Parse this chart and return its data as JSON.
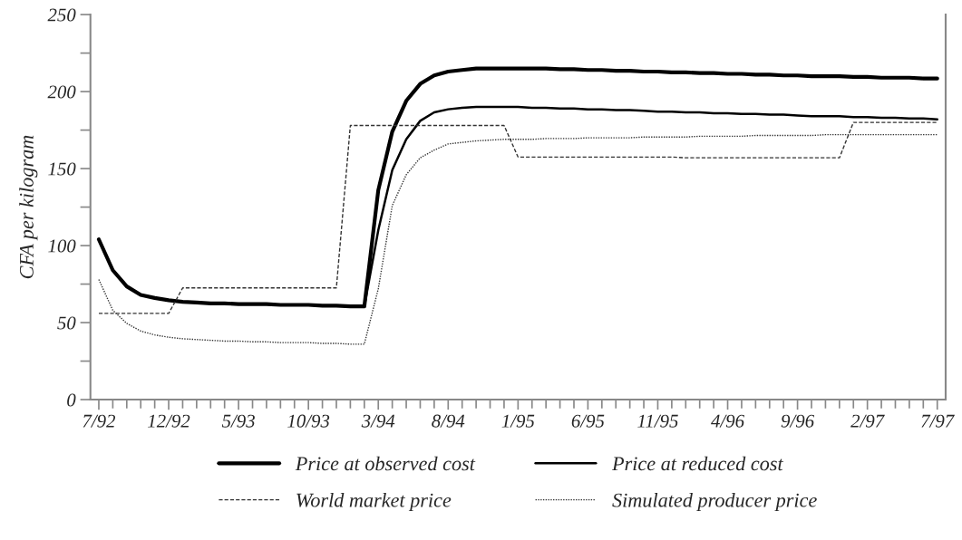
{
  "chart_data": {
    "type": "line",
    "ylabel": "CFA per kilogram",
    "categories": [
      "7/92",
      null,
      null,
      null,
      null,
      "12/92",
      null,
      null,
      null,
      null,
      "5/93",
      null,
      null,
      null,
      null,
      "10/93",
      null,
      null,
      null,
      null,
      "3/94",
      null,
      null,
      null,
      null,
      "8/94",
      null,
      null,
      null,
      null,
      "1/95",
      null,
      null,
      null,
      null,
      "6/95",
      null,
      null,
      null,
      null,
      "11/95",
      null,
      null,
      null,
      null,
      "4/96",
      null,
      null,
      null,
      null,
      "9/96",
      null,
      null,
      null,
      null,
      "2/97",
      null,
      null,
      null,
      null,
      "7/97"
    ],
    "series": [
      {
        "name": "Price at observed cost",
        "color": "#000000",
        "line_style": "solid",
        "values": [
          104,
          84,
          73.5,
          68,
          66,
          64.5,
          63.5,
          63,
          62.5,
          62.5,
          62,
          62,
          62,
          61.5,
          61.5,
          61.5,
          61,
          61,
          60.5,
          60.5,
          136,
          174,
          194,
          205,
          210.5,
          213,
          214,
          215,
          215,
          215,
          215,
          215,
          215,
          214.5,
          214.5,
          214,
          214,
          213.5,
          213.5,
          213,
          213,
          212.5,
          212.5,
          212,
          212,
          211.5,
          211.5,
          211,
          211,
          210.5,
          210.5,
          210,
          210,
          210,
          209.5,
          209.5,
          209,
          209,
          209,
          208.5,
          208.5
        ]
      },
      {
        "name": "Price at reduced cost",
        "color": "#000000",
        "line_style": "solid",
        "values": [
          null,
          null,
          null,
          null,
          null,
          null,
          null,
          null,
          null,
          null,
          null,
          null,
          null,
          null,
          null,
          null,
          null,
          null,
          null,
          60.5,
          110,
          149,
          169,
          181,
          186.5,
          188.5,
          189.5,
          190,
          190,
          190,
          190,
          189.5,
          189.5,
          189,
          189,
          188.5,
          188.5,
          188,
          188,
          187.5,
          187,
          187,
          186.5,
          186.5,
          186,
          186,
          185.5,
          185.5,
          185,
          185,
          184.5,
          184,
          184,
          184,
          183.5,
          183.5,
          183,
          183,
          182.5,
          182.5,
          182
        ]
      },
      {
        "name": "World market price",
        "color": "#333333",
        "line_style": "dashed",
        "values": [
          56,
          56,
          56,
          56,
          56,
          56,
          72.5,
          72.5,
          72.5,
          72.5,
          72.5,
          72.5,
          72.5,
          72.5,
          72.5,
          72.5,
          72.5,
          72.5,
          178,
          178,
          178,
          178,
          178,
          178,
          178,
          178,
          178,
          178,
          178,
          178,
          157.5,
          157.5,
          157.5,
          157.5,
          157.5,
          157.5,
          157.5,
          157.5,
          157.5,
          157.5,
          157.5,
          157.5,
          157,
          157,
          157,
          157,
          157,
          157,
          157,
          157,
          157,
          157,
          157,
          157,
          180,
          180,
          180,
          180,
          180,
          180,
          180
        ]
      },
      {
        "name": "Simulated producer price",
        "color": "#333333",
        "line_style": "dotted",
        "values": [
          78,
          58,
          49.5,
          44.5,
          42,
          40.5,
          39.5,
          39,
          38.5,
          38,
          38,
          37.5,
          37.5,
          37,
          37,
          37,
          36.5,
          36.5,
          36,
          36,
          72,
          126,
          146,
          157,
          162,
          166,
          167,
          168,
          168.5,
          169,
          169,
          169,
          169.5,
          169.5,
          169.5,
          170,
          170,
          170,
          170,
          170.5,
          170.5,
          170.5,
          170.5,
          171,
          171,
          171,
          171,
          171.5,
          171.5,
          171.5,
          171.5,
          171.5,
          172,
          172,
          172,
          172,
          172,
          172,
          172,
          172,
          172
        ]
      }
    ],
    "ylim": [
      0,
      250
    ],
    "yticks": [
      0,
      {
        "value": 25,
        "label": null
      },
      50,
      {
        "value": 75,
        "label": null
      },
      100,
      {
        "value": 125,
        "label": null
      },
      150,
      {
        "value": 175,
        "label": null
      },
      200,
      {
        "value": 225,
        "label": null
      },
      250
    ],
    "grid": false,
    "legend": "bottom"
  }
}
